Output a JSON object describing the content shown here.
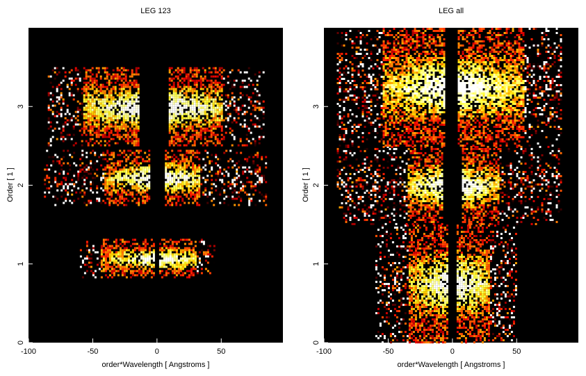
{
  "chart_data": [
    {
      "type": "heatmap",
      "title": "LEG 123",
      "xlabel": "order*Wavelength [ Angstroms ]",
      "ylabel": "Order [ 1 ]",
      "xlim": [
        -100,
        98
      ],
      "ylim": [
        0,
        4
      ],
      "x_ticks": [
        -100,
        -50,
        0,
        50
      ],
      "y_ticks": [
        0,
        1,
        2,
        3
      ],
      "colormap": "black-red-orange-yellow-white (hot)",
      "background": "#000000",
      "bands": [
        {
          "order": 1,
          "y_range": [
            0.82,
            1.32
          ],
          "x_range": [
            -60,
            45
          ],
          "core_x": [
            -45,
            30
          ],
          "center_gap": [
            -1,
            1
          ]
        },
        {
          "order": 2,
          "y_range": [
            1.75,
            2.45
          ],
          "x_range": [
            -88,
            85
          ],
          "core_x": [
            -42,
            33
          ],
          "center_gap": [
            -5,
            5
          ]
        },
        {
          "order": 3,
          "y_range": [
            2.5,
            3.5
          ],
          "x_range": [
            -85,
            83
          ],
          "core_x": [
            -58,
            50
          ],
          "center_gap": [
            -12,
            8
          ]
        }
      ]
    },
    {
      "type": "heatmap",
      "title": "LEG all",
      "xlabel": "order*Wavelength [ Angstroms ]",
      "ylabel": "Order [ 1 ]",
      "xlim": [
        -100,
        98
      ],
      "ylim": [
        0,
        4
      ],
      "x_ticks": [
        -100,
        -50,
        0,
        50
      ],
      "y_ticks": [
        0,
        1,
        2,
        3
      ],
      "colormap": "black-red-orange-yellow-white (hot)",
      "background": "#000000",
      "bands": [
        {
          "order": 1,
          "y_range": [
            0.0,
            1.5
          ],
          "x_range": [
            -60,
            50
          ],
          "core_x": [
            -35,
            28
          ],
          "center_gap": [
            -2,
            2
          ]
        },
        {
          "order": 2,
          "y_range": [
            1.5,
            2.5
          ],
          "x_range": [
            -90,
            85
          ],
          "core_x": [
            -35,
            35
          ],
          "center_gap": [
            -6,
            6
          ]
        },
        {
          "order": 3,
          "y_range": [
            2.5,
            4.0
          ],
          "x_range": [
            -90,
            85
          ],
          "core_x": [
            -55,
            55
          ],
          "center_gap": [
            -4,
            4
          ]
        }
      ]
    }
  ]
}
